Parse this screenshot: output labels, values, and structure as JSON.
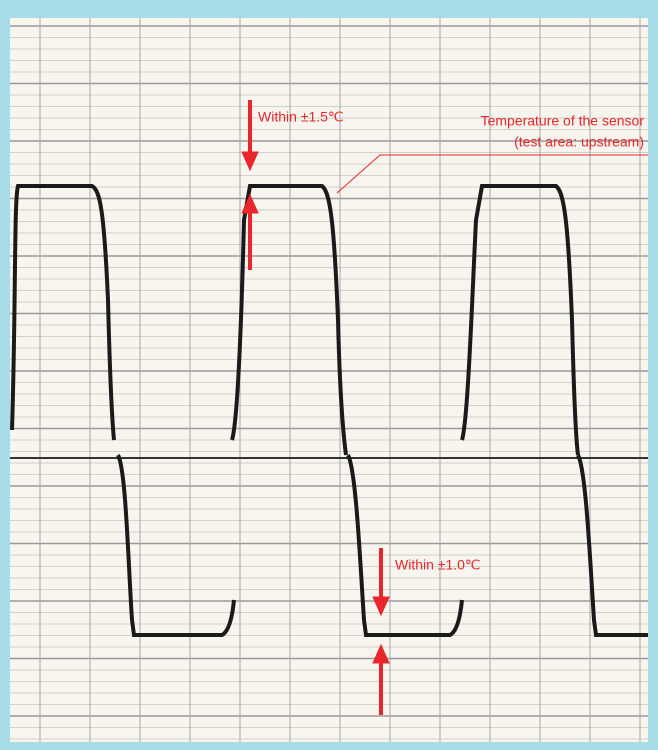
{
  "annotations": {
    "upper_tolerance": "Within ±1.5℃",
    "sensor_label_line1": "Temperature of the sensor",
    "sensor_label_line2": "(test area: upstream)",
    "lower_tolerance": "Within ±1.0℃"
  }
}
